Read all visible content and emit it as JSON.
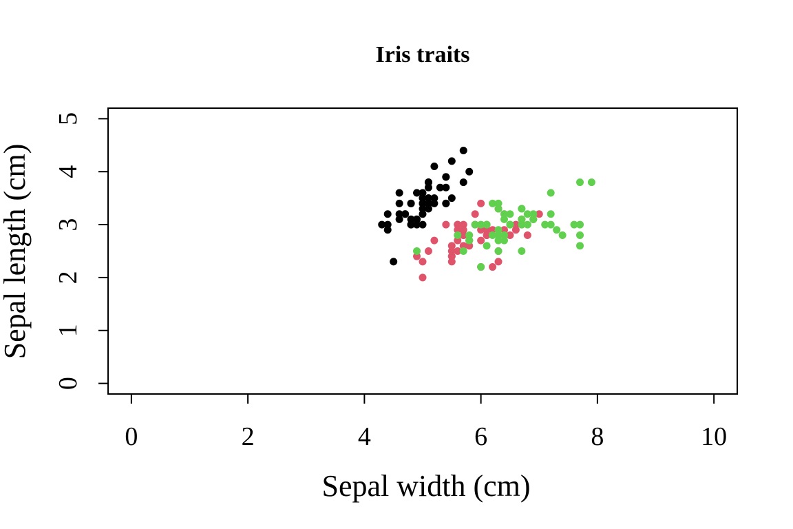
{
  "chart_data": {
    "type": "scatter",
    "title": "Iris traits",
    "xlabel": "Sepal width (cm)",
    "ylabel": "Sepal length (cm)",
    "xlim": [
      -0.4,
      10.4
    ],
    "ylim": [
      -0.2,
      5.2
    ],
    "x_ticks": [
      0,
      2,
      4,
      6,
      8,
      10
    ],
    "y_ticks": [
      0,
      1,
      2,
      3,
      4,
      5
    ],
    "x_tick_labels": [
      "0",
      "2",
      "4",
      "6",
      "8",
      "10"
    ],
    "y_tick_labels": [
      "0",
      "1",
      "2",
      "3",
      "4",
      "5"
    ],
    "grid": false,
    "series": [
      {
        "color": "#000000",
        "points": [
          [
            5.1,
            3.5
          ],
          [
            4.9,
            3.0
          ],
          [
            4.7,
            3.2
          ],
          [
            4.6,
            3.1
          ],
          [
            5.0,
            3.6
          ],
          [
            5.4,
            3.9
          ],
          [
            4.6,
            3.4
          ],
          [
            5.0,
            3.4
          ],
          [
            4.4,
            2.9
          ],
          [
            4.9,
            3.1
          ],
          [
            5.4,
            3.7
          ],
          [
            4.8,
            3.4
          ],
          [
            4.8,
            3.0
          ],
          [
            4.3,
            3.0
          ],
          [
            5.8,
            4.0
          ],
          [
            5.7,
            4.4
          ],
          [
            5.4,
            3.9
          ],
          [
            5.1,
            3.5
          ],
          [
            5.7,
            3.8
          ],
          [
            5.1,
            3.8
          ],
          [
            5.4,
            3.4
          ],
          [
            5.1,
            3.7
          ],
          [
            4.6,
            3.6
          ],
          [
            5.1,
            3.3
          ],
          [
            4.8,
            3.4
          ],
          [
            5.0,
            3.0
          ],
          [
            5.0,
            3.4
          ],
          [
            5.2,
            3.5
          ],
          [
            5.2,
            3.4
          ],
          [
            4.7,
            3.2
          ],
          [
            4.8,
            3.1
          ],
          [
            5.4,
            3.4
          ],
          [
            5.2,
            4.1
          ],
          [
            5.5,
            4.2
          ],
          [
            4.9,
            3.1
          ],
          [
            5.0,
            3.2
          ],
          [
            5.5,
            3.5
          ],
          [
            4.9,
            3.6
          ],
          [
            4.4,
            3.0
          ],
          [
            5.1,
            3.4
          ],
          [
            5.0,
            3.5
          ],
          [
            4.5,
            2.3
          ],
          [
            4.4,
            3.2
          ],
          [
            5.0,
            3.5
          ],
          [
            5.1,
            3.8
          ],
          [
            4.8,
            3.0
          ],
          [
            5.1,
            3.8
          ],
          [
            4.6,
            3.2
          ],
          [
            5.3,
            3.7
          ],
          [
            5.0,
            3.3
          ]
        ]
      },
      {
        "color": "#DF536B",
        "points": [
          [
            7.0,
            3.2
          ],
          [
            6.4,
            3.2
          ],
          [
            6.9,
            3.1
          ],
          [
            5.5,
            2.3
          ],
          [
            6.5,
            2.8
          ],
          [
            5.7,
            2.8
          ],
          [
            6.3,
            3.3
          ],
          [
            4.9,
            2.4
          ],
          [
            6.6,
            2.9
          ],
          [
            5.2,
            2.7
          ],
          [
            5.0,
            2.0
          ],
          [
            5.9,
            3.0
          ],
          [
            6.0,
            2.2
          ],
          [
            6.1,
            2.9
          ],
          [
            5.6,
            2.9
          ],
          [
            6.7,
            3.1
          ],
          [
            5.6,
            3.0
          ],
          [
            5.8,
            2.7
          ],
          [
            6.2,
            2.2
          ],
          [
            5.6,
            2.5
          ],
          [
            5.9,
            3.2
          ],
          [
            6.1,
            2.8
          ],
          [
            6.3,
            2.5
          ],
          [
            6.1,
            2.8
          ],
          [
            6.4,
            2.9
          ],
          [
            6.6,
            3.0
          ],
          [
            6.8,
            2.8
          ],
          [
            6.7,
            3.0
          ],
          [
            6.0,
            2.9
          ],
          [
            5.7,
            2.6
          ],
          [
            5.5,
            2.4
          ],
          [
            5.5,
            2.4
          ],
          [
            5.8,
            2.7
          ],
          [
            6.0,
            2.7
          ],
          [
            5.4,
            3.0
          ],
          [
            6.0,
            3.4
          ],
          [
            6.7,
            3.1
          ],
          [
            6.3,
            2.3
          ],
          [
            5.6,
            3.0
          ],
          [
            5.5,
            2.5
          ],
          [
            5.5,
            2.6
          ],
          [
            6.1,
            3.0
          ],
          [
            5.8,
            2.6
          ],
          [
            5.0,
            2.3
          ],
          [
            5.6,
            2.7
          ],
          [
            5.7,
            3.0
          ],
          [
            5.7,
            2.9
          ],
          [
            6.2,
            2.9
          ],
          [
            5.1,
            2.5
          ],
          [
            5.7,
            2.8
          ]
        ]
      },
      {
        "color": "#61D04F",
        "points": [
          [
            6.3,
            3.3
          ],
          [
            5.8,
            2.7
          ],
          [
            7.1,
            3.0
          ],
          [
            6.3,
            2.9
          ],
          [
            6.5,
            3.0
          ],
          [
            7.6,
            3.0
          ],
          [
            4.9,
            2.5
          ],
          [
            7.3,
            2.9
          ],
          [
            6.7,
            2.5
          ],
          [
            7.2,
            3.6
          ],
          [
            6.5,
            3.2
          ],
          [
            6.4,
            2.7
          ],
          [
            6.8,
            3.0
          ],
          [
            5.7,
            2.5
          ],
          [
            5.8,
            2.8
          ],
          [
            6.4,
            3.2
          ],
          [
            6.5,
            3.0
          ],
          [
            7.7,
            3.8
          ],
          [
            7.7,
            2.6
          ],
          [
            6.0,
            2.2
          ],
          [
            6.9,
            3.2
          ],
          [
            5.6,
            2.8
          ],
          [
            7.7,
            2.8
          ],
          [
            6.3,
            2.7
          ],
          [
            6.7,
            3.3
          ],
          [
            7.2,
            3.2
          ],
          [
            6.2,
            2.8
          ],
          [
            6.1,
            3.0
          ],
          [
            6.4,
            2.8
          ],
          [
            7.2,
            3.0
          ],
          [
            7.4,
            2.8
          ],
          [
            7.9,
            3.8
          ],
          [
            6.4,
            2.8
          ],
          [
            6.3,
            2.8
          ],
          [
            6.1,
            2.6
          ],
          [
            7.7,
            3.0
          ],
          [
            6.3,
            3.4
          ],
          [
            6.4,
            3.1
          ],
          [
            6.0,
            3.0
          ],
          [
            6.9,
            3.1
          ],
          [
            6.7,
            3.1
          ],
          [
            6.9,
            3.1
          ],
          [
            5.8,
            2.7
          ],
          [
            6.8,
            3.2
          ],
          [
            6.7,
            3.3
          ],
          [
            6.7,
            3.0
          ],
          [
            6.3,
            2.5
          ],
          [
            6.5,
            3.0
          ],
          [
            6.2,
            3.4
          ],
          [
            5.9,
            3.0
          ]
        ]
      }
    ]
  }
}
